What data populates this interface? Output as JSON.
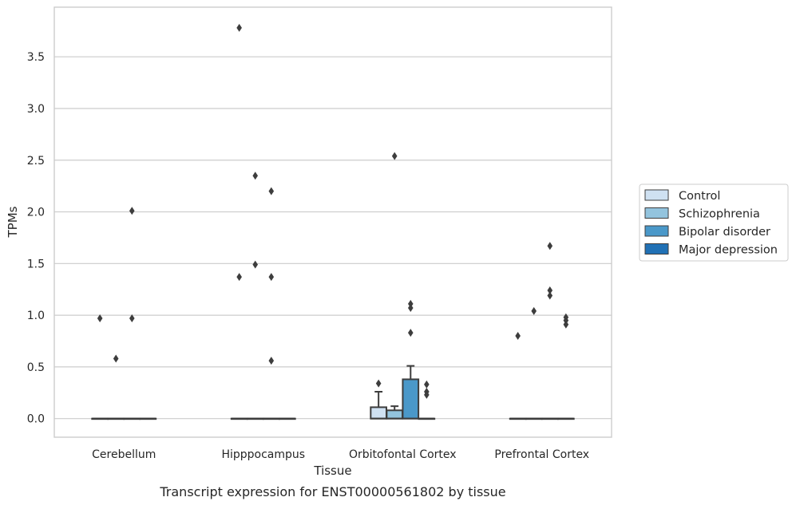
{
  "chart_data": {
    "type": "box",
    "xlabel": "Tissue",
    "ylabel": "TPMs",
    "caption": "Transcript expression for ENST00000561802 by tissue",
    "ylim": [
      -0.18,
      3.98
    ],
    "yticks": [
      "0.0",
      "0.5",
      "1.0",
      "1.5",
      "2.0",
      "2.5",
      "3.0",
      "3.5"
    ],
    "grid": "horizontal",
    "legend_position": "right",
    "categories": [
      "Cerebellum",
      "Hipppocampus",
      "Orbitofontal Cortex",
      "Prefrontal Cortex"
    ],
    "series": [
      {
        "name": "Control",
        "color": "#cfe1f2",
        "boxes": [
          {
            "q1": 0,
            "median": 0,
            "q3": 0,
            "whisker_low": 0,
            "whisker_high": 0
          },
          {
            "q1": 0,
            "median": 0,
            "q3": 0,
            "whisker_low": 0,
            "whisker_high": 0
          },
          {
            "q1": 0,
            "median": 0,
            "q3": 0.11,
            "whisker_low": 0,
            "whisker_high": 0.26
          },
          {
            "q1": 0,
            "median": 0,
            "q3": 0,
            "whisker_low": 0,
            "whisker_high": 0
          }
        ],
        "outliers": [
          [
            0.97
          ],
          [
            3.78,
            1.37
          ],
          [
            0.34
          ],
          [
            0.8
          ]
        ]
      },
      {
        "name": "Schizophrenia",
        "color": "#93c4de",
        "boxes": [
          {
            "q1": 0,
            "median": 0,
            "q3": 0,
            "whisker_low": 0,
            "whisker_high": 0
          },
          {
            "q1": 0,
            "median": 0,
            "q3": 0,
            "whisker_low": 0,
            "whisker_high": 0
          },
          {
            "q1": 0,
            "median": 0,
            "q3": 0.08,
            "whisker_low": 0,
            "whisker_high": 0.12
          },
          {
            "q1": 0,
            "median": 0,
            "q3": 0,
            "whisker_low": 0,
            "whisker_high": 0
          }
        ],
        "outliers": [
          [
            0.58
          ],
          [
            2.35,
            1.49
          ],
          [
            2.54
          ],
          [
            1.04
          ]
        ]
      },
      {
        "name": "Bipolar disorder",
        "color": "#4a98c9",
        "boxes": [
          {
            "q1": 0,
            "median": 0,
            "q3": 0,
            "whisker_low": 0,
            "whisker_high": 0
          },
          {
            "q1": 0,
            "median": 0,
            "q3": 0,
            "whisker_low": 0,
            "whisker_high": 0
          },
          {
            "q1": 0,
            "median": 0,
            "q3": 0.38,
            "whisker_low": 0,
            "whisker_high": 0.51
          },
          {
            "q1": 0,
            "median": 0,
            "q3": 0,
            "whisker_low": 0,
            "whisker_high": 0
          }
        ],
        "outliers": [
          [
            2.01,
            0.97
          ],
          [
            2.2,
            1.37,
            0.56
          ],
          [
            0.83,
            1.11,
            1.07
          ],
          [
            1.67,
            1.24,
            1.19
          ]
        ]
      },
      {
        "name": "Major depression",
        "color": "#2171b5",
        "boxes": [
          {
            "q1": 0,
            "median": 0,
            "q3": 0,
            "whisker_low": 0,
            "whisker_high": 0
          },
          {
            "q1": 0,
            "median": 0,
            "q3": 0,
            "whisker_low": 0,
            "whisker_high": 0
          },
          {
            "q1": 0,
            "median": 0,
            "q3": 0,
            "whisker_low": 0,
            "whisker_high": 0
          },
          {
            "q1": 0,
            "median": 0,
            "q3": 0,
            "whisker_low": 0,
            "whisker_high": 0
          }
        ],
        "outliers": [
          [],
          [],
          [
            0.33,
            0.26,
            0.23
          ],
          [
            0.98,
            0.95,
            0.91
          ]
        ]
      }
    ]
  }
}
